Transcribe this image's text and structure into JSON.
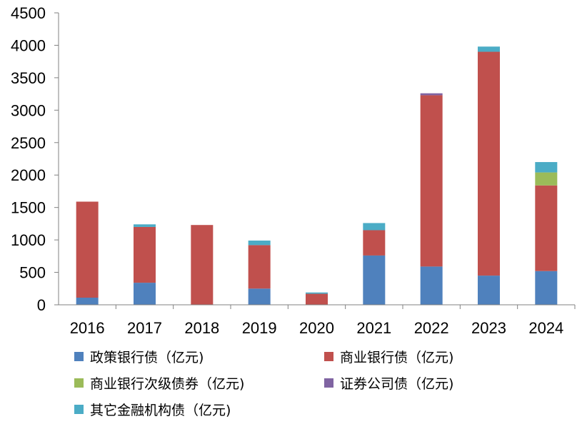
{
  "chart_data": {
    "type": "bar",
    "stacked": true,
    "categories": [
      "2016",
      "2017",
      "2018",
      "2019",
      "2020",
      "2021",
      "2022",
      "2023",
      "2024"
    ],
    "series": [
      {
        "name": "政策银行债（亿元)",
        "color": "#4f81bd",
        "values": [
          110,
          340,
          0,
          250,
          0,
          760,
          590,
          450,
          520
        ]
      },
      {
        "name": "商业银行债（亿元)",
        "color": "#c0504d",
        "values": [
          1480,
          860,
          1230,
          670,
          170,
          390,
          2640,
          3450,
          1320
        ]
      },
      {
        "name": "商业银行次级债券（亿元)",
        "color": "#9bbb59",
        "values": [
          0,
          0,
          0,
          0,
          0,
          0,
          0,
          0,
          200
        ]
      },
      {
        "name": "证券公司债（亿元)",
        "color": "#8064a2",
        "values": [
          0,
          0,
          0,
          0,
          0,
          0,
          30,
          0,
          0
        ]
      },
      {
        "name": "其它金融机构债（亿元)",
        "color": "#4bacc6",
        "values": [
          0,
          40,
          0,
          70,
          20,
          110,
          0,
          80,
          160
        ]
      }
    ],
    "yticks": [
      0,
      500,
      1000,
      1500,
      2000,
      2500,
      3000,
      3500,
      4000,
      4500
    ],
    "ylim": [
      0,
      4500
    ],
    "grid": false,
    "legend_position": "bottom"
  }
}
